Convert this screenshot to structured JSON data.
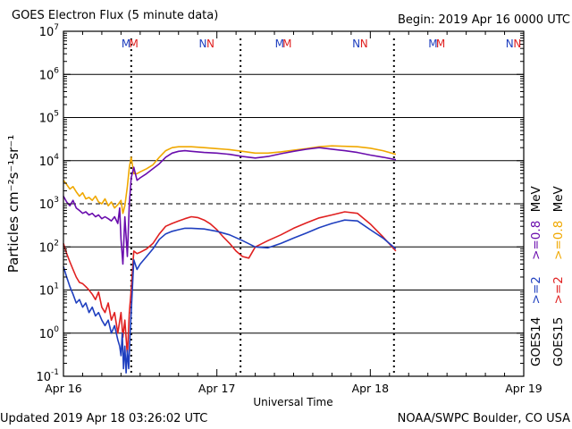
{
  "header": {
    "title": "GOES Electron Flux (5 minute data)",
    "begin": "Begin: 2019 Apr 16 0000 UTC"
  },
  "footer": {
    "updated": "Updated 2019 Apr 18 03:26:02 UTC",
    "credit": "NOAA/SWPC Boulder, CO USA"
  },
  "colors": {
    "goes14_ge2": "#1f3fbf",
    "goes14_ge08": "#6a0dad",
    "goes15_ge2": "#e02020",
    "goes15_ge08": "#f0a800",
    "axis": "#000000"
  },
  "chart_data": {
    "type": "line",
    "title": "GOES Electron Flux (5 minute data)",
    "xlabel": "Universal Time",
    "ylabel": "Particles cm⁻²s⁻¹sr⁻¹",
    "ylog": true,
    "ylim": [
      0.1,
      10000000
    ],
    "y_ticks": [
      {
        "value": 0.1,
        "base": "10",
        "exp": "-1"
      },
      {
        "value": 1,
        "base": "10",
        "exp": "0"
      },
      {
        "value": 10,
        "base": "10",
        "exp": "1"
      },
      {
        "value": 100,
        "base": "10",
        "exp": "2"
      },
      {
        "value": 1000,
        "base": "10",
        "exp": "3"
      },
      {
        "value": 10000,
        "base": "10",
        "exp": "4"
      },
      {
        "value": 100000,
        "base": "10",
        "exp": "5"
      },
      {
        "value": 1000000,
        "base": "10",
        "exp": "6"
      },
      {
        "value": 10000000,
        "base": "10",
        "exp": "7"
      }
    ],
    "xlim": [
      0,
      72
    ],
    "x_ticks": [
      {
        "hour": 0,
        "label": "Apr 16"
      },
      {
        "hour": 24,
        "label": "Apr 17"
      },
      {
        "hour": 48,
        "label": "Apr 18"
      },
      {
        "hour": 72,
        "label": "Apr 19"
      }
    ],
    "threshold_line": {
      "value": 1000,
      "style": "dashed"
    },
    "day_markers": [
      {
        "hour": 9.8,
        "label": "M",
        "sat": "GOES14"
      },
      {
        "hour": 11.0,
        "label": "M",
        "sat": "GOES15"
      },
      {
        "hour": 21.8,
        "label": "N",
        "sat": "GOES14"
      },
      {
        "hour": 23.0,
        "label": "N",
        "sat": "GOES15"
      },
      {
        "hour": 33.8,
        "label": "M",
        "sat": "GOES14"
      },
      {
        "hour": 35.0,
        "label": "M",
        "sat": "GOES15"
      },
      {
        "hour": 45.8,
        "label": "N",
        "sat": "GOES14"
      },
      {
        "hour": 47.0,
        "label": "N",
        "sat": "GOES15"
      },
      {
        "hour": 57.8,
        "label": "M",
        "sat": "GOES14"
      },
      {
        "hour": 59.0,
        "label": "M",
        "sat": "GOES15"
      },
      {
        "hour": 69.8,
        "label": "N",
        "sat": "GOES14"
      },
      {
        "hour": 71.0,
        "label": "N",
        "sat": "GOES15"
      }
    ],
    "eclipse_markers_hours": [
      10.6,
      27.7,
      51.7
    ],
    "legend": [
      {
        "group": "GOES14",
        "entries": [
          {
            "label": ">=2",
            "series": "goes14_ge2"
          },
          {
            "label": ">=0.8",
            "series": "goes14_ge08"
          }
        ],
        "unit": "MeV"
      },
      {
        "group": "GOES15",
        "entries": [
          {
            "label": ">=2",
            "series": "goes15_ge2"
          },
          {
            "label": ">=0.8",
            "series": "goes15_ge08"
          }
        ],
        "unit": "MeV"
      }
    ],
    "legend_unit": "MeV",
    "series": [
      {
        "name": "GOES15 >=0.8 MeV",
        "key": "goes15_ge08",
        "x": [
          0,
          0.5,
          1,
          1.5,
          2,
          2.5,
          3,
          3.5,
          4,
          4.5,
          5,
          5.5,
          6,
          6.5,
          7,
          7.5,
          8,
          8.5,
          9,
          9.3,
          9.6,
          10,
          10.3,
          10.6,
          11,
          11.5,
          12,
          13,
          14,
          15,
          16,
          17,
          18,
          19,
          20,
          22,
          24,
          26,
          28,
          30,
          32,
          34,
          36,
          38,
          40,
          42,
          44,
          46,
          48,
          50,
          52
        ],
        "values": [
          3500,
          2800,
          2200,
          2500,
          1900,
          1500,
          1800,
          1300,
          1400,
          1200,
          1500,
          1100,
          1000,
          1300,
          900,
          1100,
          800,
          950,
          1200,
          600,
          900,
          2500,
          7000,
          12000,
          5000,
          5000,
          5500,
          6500,
          8000,
          12000,
          17000,
          20000,
          21000,
          21000,
          21000,
          20000,
          19000,
          18000,
          16500,
          15000,
          15000,
          16000,
          17500,
          19000,
          21000,
          22000,
          21500,
          21000,
          19500,
          17000,
          14000
        ]
      },
      {
        "name": "GOES14 >=0.8 MeV",
        "key": "goes14_ge08",
        "x": [
          0,
          0.5,
          1,
          1.5,
          2,
          2.5,
          3,
          3.5,
          4,
          4.5,
          5,
          5.5,
          6,
          6.5,
          7,
          7.5,
          8,
          8.5,
          8.8,
          9,
          9.3,
          9.6,
          10,
          10.3,
          10.6,
          11,
          11.5,
          12,
          13,
          14,
          15,
          16,
          17,
          18,
          19,
          20,
          22,
          24,
          26,
          28,
          30,
          32,
          34,
          36,
          38,
          40,
          42,
          44,
          46,
          48,
          50,
          52
        ],
        "values": [
          1500,
          1100,
          900,
          1200,
          800,
          700,
          600,
          650,
          550,
          600,
          500,
          550,
          450,
          500,
          450,
          400,
          500,
          350,
          800,
          150,
          40,
          500,
          60,
          1000,
          4000,
          7000,
          3500,
          4000,
          5000,
          6500,
          8500,
          12000,
          15000,
          16500,
          17000,
          16500,
          15500,
          15000,
          14000,
          12500,
          11500,
          12500,
          14500,
          16500,
          18500,
          20000,
          18500,
          17000,
          15500,
          13500,
          12000,
          10500
        ]
      },
      {
        "name": "GOES15 >=2 MeV",
        "key": "goes15_ge2",
        "x": [
          0,
          0.5,
          1,
          1.5,
          2,
          2.5,
          3,
          3.5,
          4,
          4.5,
          5,
          5.5,
          6,
          6.5,
          7,
          7.5,
          8,
          8.5,
          9,
          9.3,
          9.6,
          10,
          10.3,
          10.6,
          11,
          11.5,
          12,
          13,
          14,
          15,
          16,
          17,
          18,
          19,
          20,
          21,
          22,
          23,
          24,
          25,
          26,
          27,
          28,
          29,
          30,
          32,
          34,
          36,
          38,
          40,
          42,
          44,
          46,
          48,
          50,
          52
        ],
        "values": [
          120,
          70,
          45,
          30,
          20,
          15,
          14,
          12,
          10,
          8,
          6,
          9,
          4,
          3,
          5,
          2,
          3,
          1,
          3,
          0.8,
          2,
          0.3,
          3,
          10,
          80,
          70,
          75,
          90,
          120,
          200,
          300,
          350,
          400,
          450,
          500,
          480,
          420,
          340,
          250,
          170,
          120,
          80,
          60,
          55,
          100,
          140,
          190,
          270,
          360,
          470,
          550,
          650,
          600,
          340,
          170,
          80
        ]
      },
      {
        "name": "GOES14 >=2 MeV",
        "key": "goes14_ge2",
        "x": [
          0,
          0.5,
          1,
          1.5,
          2,
          2.5,
          3,
          3.5,
          4,
          4.5,
          5,
          5.5,
          6,
          6.5,
          7,
          7.5,
          8,
          8.5,
          8.8,
          9,
          9.2,
          9.4,
          9.6,
          9.8,
          10,
          10.2,
          10.4,
          10.6,
          11,
          11.5,
          12,
          13,
          14,
          15,
          16,
          17,
          18,
          19,
          20,
          22,
          24,
          26,
          28,
          30,
          32,
          34,
          36,
          38,
          40,
          42,
          44,
          46,
          48,
          50,
          52
        ],
        "values": [
          35,
          20,
          12,
          8,
          5,
          6,
          4,
          5,
          3,
          4,
          2.5,
          3,
          2,
          1.5,
          2,
          1,
          1.5,
          0.7,
          0.5,
          0.3,
          1,
          0.15,
          0.5,
          0.12,
          0.4,
          0.15,
          0.8,
          3,
          50,
          30,
          40,
          60,
          90,
          150,
          200,
          230,
          250,
          270,
          270,
          260,
          230,
          190,
          140,
          100,
          95,
          120,
          160,
          210,
          280,
          350,
          420,
          400,
          250,
          160,
          90
        ]
      }
    ]
  }
}
